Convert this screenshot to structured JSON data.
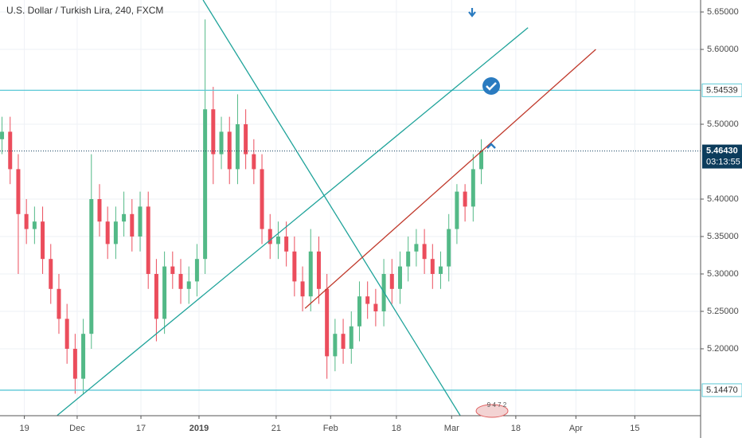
{
  "chart_data": {
    "type": "candlestick",
    "title": "U.S. Dollar / Turkish Lira, 240, FXCM",
    "up_color": "#53b987",
    "down_color": "#eb4d5c",
    "grid": true,
    "xlim": [
      0,
      172.5
    ],
    "ylim": [
      5.1106,
      5.666
    ],
    "xticks": [
      {
        "value": 6,
        "label": "19"
      },
      {
        "value": 19,
        "label": "Dec"
      },
      {
        "value": 34.7,
        "label": "17"
      },
      {
        "value": 49,
        "label": "2019"
      },
      {
        "value": 68,
        "label": "21"
      },
      {
        "value": 81.4,
        "label": "Feb"
      },
      {
        "value": 97.6,
        "label": "18"
      },
      {
        "value": 111.2,
        "label": "Mar"
      },
      {
        "value": 127,
        "label": "18"
      },
      {
        "value": 141.8,
        "label": "Apr"
      },
      {
        "value": 156.3,
        "label": "15"
      }
    ],
    "yticks": [
      {
        "value": 5.2,
        "label": "5.20000"
      },
      {
        "value": 5.25,
        "label": "5.25000"
      },
      {
        "value": 5.3,
        "label": "5.30000"
      },
      {
        "value": 5.35,
        "label": "5.35000"
      },
      {
        "value": 5.4,
        "label": "5.40000"
      },
      {
        "value": 5.5,
        "label": "5.50000"
      },
      {
        "value": 5.6,
        "label": "5.60000"
      },
      {
        "value": 5.65,
        "label": "5.65000"
      }
    ],
    "candles": {
      "x": [
        0.5,
        2.5,
        4.5,
        6.5,
        8.5,
        10.5,
        12.5,
        14.5,
        16.5,
        18.5,
        20.5,
        22.5,
        24.5,
        26.5,
        28.5,
        30.5,
        32.5,
        34.5,
        36.5,
        38.5,
        40.5,
        42.5,
        44.5,
        46.5,
        48.5,
        50.5,
        52.5,
        54.5,
        56.5,
        58.5,
        60.5,
        62.5,
        64.5,
        66.5,
        68.5,
        70.5,
        72.5,
        74.5,
        76.5,
        78.5,
        80.5,
        82.5,
        84.5,
        86.5,
        88.5,
        90.5,
        92.5,
        94.5,
        96.5,
        98.5,
        100.5,
        102.5,
        104.5,
        106.5,
        108.5,
        110.5,
        112.5,
        114.5,
        116.5,
        118.5
      ],
      "open": [
        5.48,
        5.49,
        5.44,
        5.38,
        5.36,
        5.37,
        5.32,
        5.28,
        5.24,
        5.2,
        5.16,
        5.22,
        5.4,
        5.37,
        5.34,
        5.37,
        5.38,
        5.35,
        5.39,
        5.3,
        5.24,
        5.31,
        5.3,
        5.28,
        5.29,
        5.32,
        5.52,
        5.46,
        5.49,
        5.44,
        5.5,
        5.46,
        5.44,
        5.36,
        5.34,
        5.35,
        5.33,
        5.29,
        5.27,
        5.33,
        5.28,
        5.19,
        5.22,
        5.2,
        5.23,
        5.27,
        5.26,
        5.25,
        5.3,
        5.28,
        5.31,
        5.33,
        5.34,
        5.32,
        5.3,
        5.31,
        5.36,
        5.41,
        5.39,
        5.44
      ],
      "high": [
        5.51,
        5.51,
        5.46,
        5.4,
        5.39,
        5.39,
        5.34,
        5.3,
        5.26,
        5.22,
        5.24,
        5.46,
        5.42,
        5.39,
        5.39,
        5.41,
        5.4,
        5.41,
        5.41,
        5.32,
        5.33,
        5.33,
        5.32,
        5.31,
        5.34,
        5.64,
        5.55,
        5.51,
        5.51,
        5.54,
        5.52,
        5.48,
        5.46,
        5.38,
        5.37,
        5.37,
        5.35,
        5.31,
        5.36,
        5.35,
        5.3,
        5.24,
        5.24,
        5.25,
        5.29,
        5.29,
        5.28,
        5.32,
        5.32,
        5.33,
        5.35,
        5.36,
        5.36,
        5.34,
        5.33,
        5.38,
        5.42,
        5.42,
        5.46,
        5.48
      ],
      "low": [
        5.46,
        5.42,
        5.3,
        5.34,
        5.34,
        5.3,
        5.26,
        5.22,
        5.18,
        5.14,
        5.14,
        5.2,
        5.35,
        5.32,
        5.32,
        5.35,
        5.33,
        5.33,
        5.28,
        5.21,
        5.22,
        5.28,
        5.26,
        5.26,
        5.27,
        5.3,
        5.42,
        5.44,
        5.42,
        5.42,
        5.44,
        5.42,
        5.34,
        5.32,
        5.32,
        5.31,
        5.27,
        5.25,
        5.25,
        5.26,
        5.16,
        5.17,
        5.18,
        5.18,
        5.21,
        5.24,
        5.23,
        5.23,
        5.26,
        5.26,
        5.29,
        5.31,
        5.3,
        5.28,
        5.28,
        5.29,
        5.34,
        5.37,
        5.37,
        5.42
      ],
      "close": [
        5.49,
        5.44,
        5.38,
        5.36,
        5.37,
        5.32,
        5.28,
        5.24,
        5.2,
        5.16,
        5.22,
        5.4,
        5.37,
        5.34,
        5.37,
        5.38,
        5.35,
        5.39,
        5.3,
        5.24,
        5.31,
        5.3,
        5.28,
        5.29,
        5.32,
        5.52,
        5.46,
        5.49,
        5.44,
        5.5,
        5.46,
        5.44,
        5.36,
        5.34,
        5.35,
        5.33,
        5.29,
        5.27,
        5.33,
        5.28,
        5.19,
        5.22,
        5.2,
        5.23,
        5.27,
        5.26,
        5.25,
        5.3,
        5.28,
        5.31,
        5.33,
        5.34,
        5.32,
        5.3,
        5.31,
        5.36,
        5.41,
        5.39,
        5.44,
        5.464
      ]
    },
    "trend_lines": [
      {
        "x": [
          50,
          113.3
        ],
        "y": [
          5.666,
          5.111
        ],
        "color": "#1fa39a"
      },
      {
        "x": [
          14.1,
          130
        ],
        "y": [
          5.111,
          5.629
        ],
        "color": "#1fa39a"
      },
      {
        "x": [
          75.1,
          146.7
        ],
        "y": [
          5.254,
          5.6
        ],
        "color": "#c0392b"
      }
    ],
    "horizontal_lines": [
      {
        "price": 5.54539,
        "label": "5.54539",
        "color": "#5bc8d6"
      },
      {
        "price": 5.1447,
        "label": "5.14470",
        "color": "#5bc8d6"
      }
    ],
    "last_price": {
      "price": 5.4643,
      "label": "5.46430",
      "countdown": "03:13:55",
      "color": "#0c3c5c"
    },
    "badge": "9 4 7 2"
  }
}
